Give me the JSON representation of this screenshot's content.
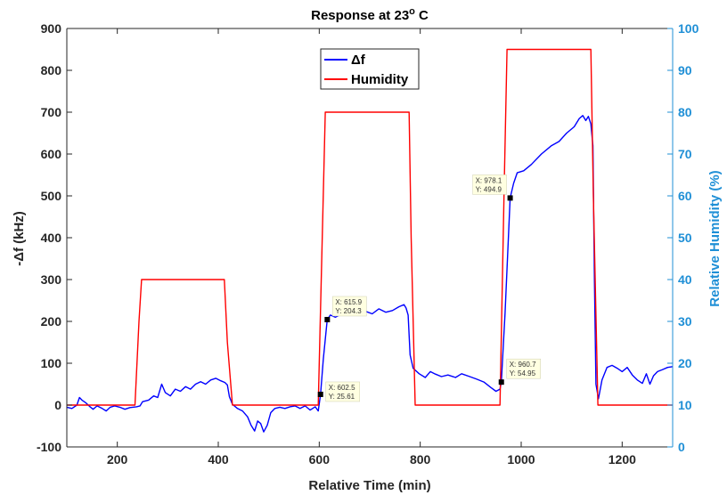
{
  "chart_data": {
    "type": "line",
    "title": "Response at 23",
    "title_superscript": "o",
    "title_suffix": " C",
    "xlabel": "Relative Time (min)",
    "ylabel": "-Δf (kHz)",
    "ylabel_right": "Relative Humidity (%)",
    "xlim": [
      100,
      1300
    ],
    "ylim": [
      -100,
      900
    ],
    "ylim_right": [
      0,
      100
    ],
    "xticks": [
      200,
      400,
      600,
      800,
      1000,
      1200
    ],
    "yticks": [
      -100,
      0,
      100,
      200,
      300,
      400,
      500,
      600,
      700,
      800,
      900
    ],
    "yticks_right": [
      0,
      10,
      20,
      30,
      40,
      50,
      60,
      70,
      80,
      90,
      100
    ],
    "grid": false,
    "legend_position": "top-center",
    "colors": {
      "delta_f": "#0000ff",
      "humidity": "#ff0000",
      "right_axis": "#1f8fd6",
      "tip_bg": "#ffffe1"
    },
    "series": [
      {
        "name": "Δf",
        "axis": "left",
        "color": "#0000ff",
        "points": [
          [
            100,
            -5
          ],
          [
            110,
            -8
          ],
          [
            120,
            0
          ],
          [
            125,
            18
          ],
          [
            130,
            12
          ],
          [
            138,
            5
          ],
          [
            145,
            -3
          ],
          [
            152,
            -10
          ],
          [
            160,
            -2
          ],
          [
            170,
            -8
          ],
          [
            178,
            -14
          ],
          [
            186,
            -5
          ],
          [
            195,
            -2
          ],
          [
            205,
            -5
          ],
          [
            215,
            -10
          ],
          [
            225,
            -6
          ],
          [
            238,
            -4
          ],
          [
            245,
            -2
          ],
          [
            250,
            8
          ],
          [
            262,
            12
          ],
          [
            272,
            22
          ],
          [
            280,
            18
          ],
          [
            288,
            50
          ],
          [
            295,
            30
          ],
          [
            305,
            22
          ],
          [
            315,
            38
          ],
          [
            325,
            33
          ],
          [
            335,
            44
          ],
          [
            345,
            38
          ],
          [
            355,
            50
          ],
          [
            365,
            56
          ],
          [
            375,
            50
          ],
          [
            385,
            60
          ],
          [
            395,
            64
          ],
          [
            405,
            58
          ],
          [
            413,
            54
          ],
          [
            418,
            48
          ],
          [
            422,
            20
          ],
          [
            428,
            2
          ],
          [
            438,
            -8
          ],
          [
            448,
            -14
          ],
          [
            458,
            -28
          ],
          [
            465,
            -48
          ],
          [
            472,
            -62
          ],
          [
            478,
            -38
          ],
          [
            484,
            -44
          ],
          [
            490,
            -64
          ],
          [
            497,
            -48
          ],
          [
            504,
            -18
          ],
          [
            512,
            -8
          ],
          [
            522,
            -5
          ],
          [
            532,
            -8
          ],
          [
            542,
            -4
          ],
          [
            552,
            -2
          ],
          [
            562,
            -8
          ],
          [
            572,
            -2
          ],
          [
            582,
            -12
          ],
          [
            592,
            -4
          ],
          [
            598,
            -14
          ],
          [
            602.5,
            25.61
          ],
          [
            608,
            110
          ],
          [
            615.9,
            204.3
          ],
          [
            622,
            215
          ],
          [
            632,
            210
          ],
          [
            645,
            218
          ],
          [
            660,
            220
          ],
          [
            672,
            224
          ],
          [
            690,
            225
          ],
          [
            705,
            218
          ],
          [
            718,
            230
          ],
          [
            732,
            222
          ],
          [
            745,
            226
          ],
          [
            758,
            235
          ],
          [
            768,
            240
          ],
          [
            772,
            232
          ],
          [
            776,
            215
          ],
          [
            780,
            120
          ],
          [
            786,
            88
          ],
          [
            798,
            75
          ],
          [
            810,
            66
          ],
          [
            820,
            80
          ],
          [
            830,
            74
          ],
          [
            842,
            68
          ],
          [
            855,
            72
          ],
          [
            870,
            66
          ],
          [
            882,
            75
          ],
          [
            898,
            68
          ],
          [
            912,
            62
          ],
          [
            926,
            55
          ],
          [
            940,
            42
          ],
          [
            950,
            33
          ],
          [
            958,
            38
          ],
          [
            960.7,
            54.95
          ],
          [
            968,
            220
          ],
          [
            978.1,
            494.9
          ],
          [
            985,
            530
          ],
          [
            992,
            555
          ],
          [
            1005,
            560
          ],
          [
            1020,
            575
          ],
          [
            1040,
            600
          ],
          [
            1060,
            620
          ],
          [
            1075,
            630
          ],
          [
            1090,
            650
          ],
          [
            1105,
            665
          ],
          [
            1115,
            685
          ],
          [
            1122,
            692
          ],
          [
            1128,
            680
          ],
          [
            1133,
            690
          ],
          [
            1138,
            672
          ],
          [
            1142,
            620
          ],
          [
            1145,
            300
          ],
          [
            1148,
            50
          ],
          [
            1153,
            15
          ],
          [
            1160,
            60
          ],
          [
            1170,
            90
          ],
          [
            1180,
            95
          ],
          [
            1190,
            88
          ],
          [
            1200,
            80
          ],
          [
            1210,
            90
          ],
          [
            1220,
            72
          ],
          [
            1230,
            60
          ],
          [
            1240,
            52
          ],
          [
            1248,
            75
          ],
          [
            1255,
            50
          ],
          [
            1262,
            70
          ],
          [
            1270,
            80
          ],
          [
            1280,
            85
          ],
          [
            1290,
            90
          ],
          [
            1300,
            92
          ]
        ]
      },
      {
        "name": "Humidity",
        "axis": "right",
        "color": "#ff0000",
        "points": [
          [
            100,
            10
          ],
          [
            235,
            10
          ],
          [
            243,
            30
          ],
          [
            248,
            40
          ],
          [
            412,
            40
          ],
          [
            418,
            25
          ],
          [
            428,
            10
          ],
          [
            598,
            10
          ],
          [
            606,
            50
          ],
          [
            612,
            80
          ],
          [
            778,
            80
          ],
          [
            782,
            50
          ],
          [
            790,
            10
          ],
          [
            958,
            10
          ],
          [
            966,
            60
          ],
          [
            972,
            95
          ],
          [
            1138,
            95
          ],
          [
            1143,
            60
          ],
          [
            1152,
            10
          ],
          [
            1300,
            10
          ]
        ]
      }
    ],
    "annotations": [
      {
        "x": 602.5,
        "y": 25.61,
        "label_x": "X: 602.5",
        "label_y": "Y: 25.61",
        "placement": "right-below"
      },
      {
        "x": 615.9,
        "y": 204.3,
        "label_x": "X: 615.9",
        "label_y": "Y: 204.3",
        "placement": "right-above"
      },
      {
        "x": 960.7,
        "y": 54.95,
        "label_x": "X: 960.7",
        "label_y": "Y: 54.95",
        "placement": "right-above"
      },
      {
        "x": 978.1,
        "y": 494.9,
        "label_x": "X: 978.1",
        "label_y": "Y: 494.9",
        "placement": "left-above"
      }
    ]
  }
}
